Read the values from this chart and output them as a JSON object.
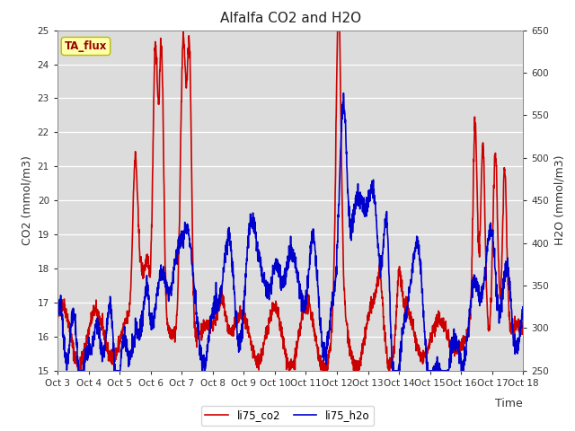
{
  "title": "Alfalfa CO2 and H2O",
  "xlabel": "Time",
  "ylabel_left": "CO2 (mmol/m3)",
  "ylabel_right": "H2O (mmol/m3)",
  "ylim_left": [
    15.0,
    25.0
  ],
  "ylim_right": [
    250,
    650
  ],
  "xtick_labels": [
    "Oct 3",
    "Oct 4",
    "Oct 5",
    "Oct 6",
    "Oct 7",
    "Oct 8",
    "Oct 9",
    "Oct 10",
    "Oct 11",
    "Oct 12",
    "Oct 13",
    "Oct 14",
    "Oct 15",
    "Oct 16",
    "Oct 17",
    "Oct 18"
  ],
  "legend_label_co2": "li75_co2",
  "legend_label_h2o": "li75_h2o",
  "co2_color": "#CC0000",
  "h2o_color": "#0000CC",
  "background_color": "#DCDCDC",
  "annotation_text": "TA_flux",
  "annotation_color": "#990000",
  "annotation_bg": "#FFFFAA",
  "title_fontsize": 11,
  "axis_label_fontsize": 9,
  "tick_fontsize": 7.5,
  "legend_fontsize": 8.5,
  "linewidth": 1.2
}
